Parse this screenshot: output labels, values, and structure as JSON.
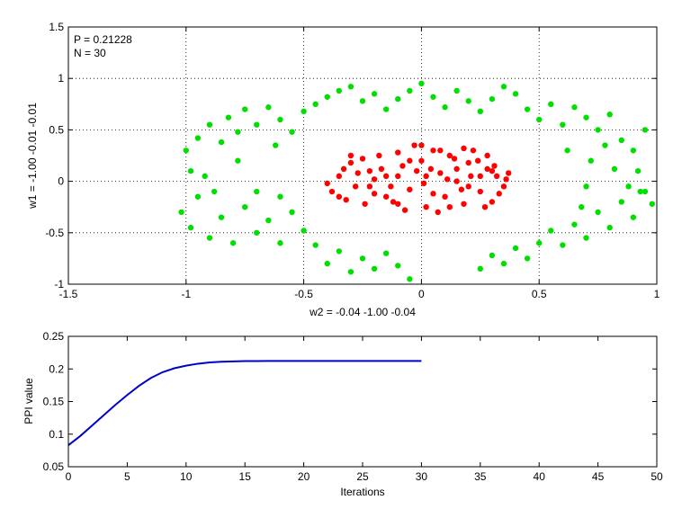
{
  "chart_data": [
    {
      "type": "scatter",
      "title": "",
      "xlabel": "w2 = -0.04  -1.00  -0.04",
      "ylabel": "w1 = -1.00  -0.01  -0.01",
      "xlim": [
        -1.5,
        1
      ],
      "ylim": [
        -1,
        1.5
      ],
      "x_ticks": [
        "-1.5",
        "-1",
        "-0.5",
        "0",
        "0.5",
        "1"
      ],
      "y_ticks": [
        "-1",
        "-0.5",
        "0",
        "0.5",
        "1",
        "1.5"
      ],
      "grid": true,
      "annotations": [
        "P = 0.21228",
        "N = 30"
      ],
      "series": [
        {
          "color": "#ff0000",
          "points": [
            [
              -0.35,
              0.05
            ],
            [
              -0.33,
              0.12
            ],
            [
              -0.3,
              0.18
            ],
            [
              -0.28,
              -0.05
            ],
            [
              -0.25,
              0.22
            ],
            [
              -0.22,
              0.1
            ],
            [
              -0.2,
              -0.12
            ],
            [
              -0.18,
              0.25
            ],
            [
              -0.15,
              0.05
            ],
            [
              -0.12,
              -0.2
            ],
            [
              -0.1,
              0.28
            ],
            [
              -0.08,
              0.15
            ],
            [
              -0.05,
              -0.08
            ],
            [
              -0.03,
              0.35
            ],
            [
              0,
              0.2
            ],
            [
              0.02,
              -0.25
            ],
            [
              0.05,
              0.3
            ],
            [
              0.08,
              0.08
            ],
            [
              0.1,
              -0.15
            ],
            [
              0.12,
              0.25
            ],
            [
              0.15,
              0
            ],
            [
              0.18,
              -0.22
            ],
            [
              0.2,
              0.18
            ],
            [
              0.22,
              0.3
            ],
            [
              0.25,
              -0.1
            ],
            [
              0.28,
              0.12
            ],
            [
              0.3,
              -0.2
            ],
            [
              0.32,
              0.05
            ],
            [
              0.35,
              -0.05
            ],
            [
              0.37,
              0.08
            ],
            [
              -0.4,
              -0.02
            ],
            [
              -0.38,
              -0.1
            ],
            [
              -0.32,
              -0.18
            ],
            [
              -0.27,
              0.08
            ],
            [
              -0.24,
              -0.22
            ],
            [
              -0.2,
              0.02
            ],
            [
              -0.17,
              0.12
            ],
            [
              -0.13,
              -0.05
            ],
            [
              -0.1,
              0.05
            ],
            [
              -0.07,
              -0.28
            ],
            [
              -0.02,
              0.1
            ],
            [
              0.01,
              -0.02
            ],
            [
              0.04,
              0.12
            ],
            [
              0.07,
              -0.3
            ],
            [
              0.11,
              0.02
            ],
            [
              0.14,
              0.22
            ],
            [
              0.17,
              -0.08
            ],
            [
              0.21,
              0.05
            ],
            [
              0.24,
              0.2
            ],
            [
              0.27,
              -0.25
            ],
            [
              0.31,
              0.15
            ],
            [
              0.33,
              -0.12
            ],
            [
              0.36,
              0.02
            ],
            [
              -0.3,
              0.25
            ],
            [
              -0.15,
              -0.15
            ],
            [
              0,
              0.35
            ],
            [
              0.05,
              -0.12
            ],
            [
              0.12,
              -0.25
            ],
            [
              0.2,
              -0.05
            ],
            [
              0.28,
              0.25
            ],
            [
              -0.22,
              -0.05
            ],
            [
              -0.05,
              0.2
            ],
            [
              0.08,
              0.3
            ],
            [
              0.15,
              0.12
            ],
            [
              0.25,
              0.05
            ],
            [
              -0.35,
              -0.15
            ],
            [
              -0.1,
              -0.22
            ],
            [
              0.02,
              0.05
            ],
            [
              0.18,
              0.32
            ],
            [
              0.3,
              0.1
            ]
          ]
        },
        {
          "color": "#00e000",
          "points": [
            [
              -1,
              0.3
            ],
            [
              -0.98,
              0.1
            ],
            [
              -0.95,
              0.42
            ],
            [
              -0.9,
              0.55
            ],
            [
              -0.85,
              0.38
            ],
            [
              -0.82,
              0.62
            ],
            [
              -0.78,
              0.48
            ],
            [
              -0.75,
              0.7
            ],
            [
              -0.7,
              0.55
            ],
            [
              -0.65,
              0.72
            ],
            [
              -0.6,
              0.6
            ],
            [
              -0.55,
              0.48
            ],
            [
              -0.5,
              0.68
            ],
            [
              -0.45,
              0.75
            ],
            [
              -0.4,
              0.82
            ],
            [
              -0.35,
              0.88
            ],
            [
              -0.3,
              0.92
            ],
            [
              -0.25,
              0.78
            ],
            [
              -0.2,
              0.85
            ],
            [
              -0.15,
              0.7
            ],
            [
              -0.1,
              0.8
            ],
            [
              -0.05,
              0.88
            ],
            [
              0,
              0.95
            ],
            [
              0.05,
              0.82
            ],
            [
              0.1,
              0.72
            ],
            [
              0.15,
              0.88
            ],
            [
              0.2,
              0.78
            ],
            [
              0.25,
              0.68
            ],
            [
              0.3,
              0.8
            ],
            [
              0.35,
              0.92
            ],
            [
              0.4,
              0.85
            ],
            [
              0.45,
              0.7
            ],
            [
              0.5,
              0.6
            ],
            [
              0.55,
              0.75
            ],
            [
              0.6,
              0.55
            ],
            [
              0.65,
              0.72
            ],
            [
              0.7,
              0.62
            ],
            [
              0.75,
              0.5
            ],
            [
              0.8,
              0.65
            ],
            [
              0.85,
              0.4
            ],
            [
              0.9,
              0.3
            ],
            [
              0.95,
              0.5
            ],
            [
              -1.02,
              -0.3
            ],
            [
              -0.98,
              -0.45
            ],
            [
              -0.95,
              -0.15
            ],
            [
              -0.9,
              -0.55
            ],
            [
              -0.85,
              -0.35
            ],
            [
              -0.8,
              -0.6
            ],
            [
              -0.75,
              -0.25
            ],
            [
              -0.7,
              -0.5
            ],
            [
              -0.65,
              -0.38
            ],
            [
              -0.6,
              -0.6
            ],
            [
              -0.55,
              -0.3
            ],
            [
              -0.5,
              -0.48
            ],
            [
              -0.45,
              -0.62
            ],
            [
              -0.4,
              -0.8
            ],
            [
              -0.35,
              -0.68
            ],
            [
              -0.3,
              -0.88
            ],
            [
              -0.25,
              -0.75
            ],
            [
              -0.2,
              -0.85
            ],
            [
              -0.15,
              -0.7
            ],
            [
              -0.1,
              -0.82
            ],
            [
              -0.05,
              -0.95
            ],
            [
              0.25,
              -0.85
            ],
            [
              0.3,
              -0.72
            ],
            [
              0.35,
              -0.8
            ],
            [
              0.4,
              -0.65
            ],
            [
              0.45,
              -0.75
            ],
            [
              0.5,
              -0.6
            ],
            [
              0.55,
              -0.48
            ],
            [
              0.6,
              -0.62
            ],
            [
              0.65,
              -0.42
            ],
            [
              0.7,
              -0.55
            ],
            [
              0.75,
              -0.3
            ],
            [
              0.8,
              -0.45
            ],
            [
              0.85,
              -0.2
            ],
            [
              0.9,
              -0.35
            ],
            [
              0.95,
              -0.1
            ],
            [
              0.98,
              -0.22
            ],
            [
              0.93,
              -0.1
            ],
            [
              0.88,
              -0.05
            ],
            [
              0.92,
              0.1
            ],
            [
              -0.92,
              0.05
            ],
            [
              -0.88,
              -0.1
            ],
            [
              0.7,
              -0.05
            ],
            [
              0.72,
              0.2
            ],
            [
              0.78,
              0.35
            ],
            [
              0.82,
              0.12
            ],
            [
              0.62,
              0.3
            ],
            [
              0.68,
              -0.25
            ],
            [
              -0.7,
              -0.1
            ],
            [
              -0.78,
              0.2
            ],
            [
              -0.62,
              0.35
            ],
            [
              -0.6,
              -0.15
            ]
          ]
        }
      ]
    },
    {
      "type": "line",
      "title": "",
      "xlabel": "Iterations",
      "ylabel": "PPI value",
      "xlim": [
        0,
        50
      ],
      "ylim": [
        0.05,
        0.25
      ],
      "x_ticks": [
        "0",
        "5",
        "10",
        "15",
        "20",
        "25",
        "30",
        "35",
        "40",
        "45",
        "50"
      ],
      "y_ticks": [
        "0.05",
        "0.1",
        "0.15",
        "0.2",
        "0.25"
      ],
      "grid": false,
      "series": [
        {
          "color": "#0000cc",
          "x": [
            0,
            1,
            2,
            3,
            4,
            5,
            6,
            7,
            8,
            9,
            10,
            11,
            12,
            13,
            14,
            15,
            16,
            17,
            18,
            19,
            20,
            21,
            22,
            23,
            24,
            25,
            26,
            27,
            28,
            29,
            30
          ],
          "y": [
            0.083,
            0.097,
            0.113,
            0.129,
            0.145,
            0.16,
            0.174,
            0.186,
            0.195,
            0.201,
            0.205,
            0.208,
            0.21,
            0.211,
            0.2115,
            0.212,
            0.2121,
            0.2122,
            0.2122,
            0.2122,
            0.2123,
            0.2123,
            0.2123,
            0.2123,
            0.2123,
            0.2123,
            0.2123,
            0.2123,
            0.2123,
            0.2123,
            0.21228
          ]
        }
      ]
    }
  ]
}
